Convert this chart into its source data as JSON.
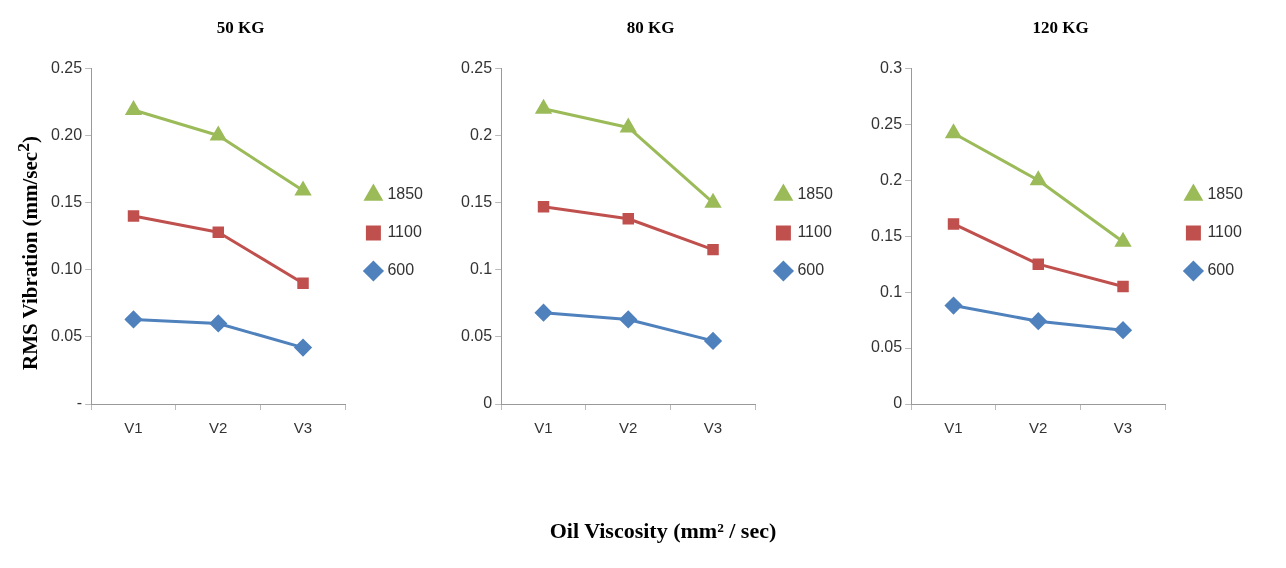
{
  "chart_data": [
    {
      "type": "line",
      "title": "50 KG",
      "ylabel": "RMS Vibration  (mm/sec$^{2}$)",
      "categories": [
        "V1",
        "V2",
        "V3"
      ],
      "ylim": [
        0,
        0.25
      ],
      "yticks": [
        {
          "value": 0,
          "label": "-"
        },
        0.05,
        {
          "value": 0.1,
          "label": "0.10"
        },
        0.15,
        {
          "value": 0.2,
          "label": "0.20"
        },
        0.25
      ],
      "grid": false,
      "legend": "right",
      "series": [
        {
          "name": "1850",
          "color": "#9bbb59",
          "marker": "triangle",
          "values": [
            0.219,
            0.2,
            0.159
          ]
        },
        {
          "name": "1100",
          "color": "#c0504d",
          "marker": "square",
          "values": [
            0.14,
            0.128,
            0.09
          ]
        },
        {
          "name": "600",
          "color": "#4f81bd",
          "marker": "diamond",
          "values": [
            0.063,
            0.06,
            0.042
          ]
        }
      ]
    },
    {
      "type": "line",
      "title": "80 KG",
      "xlabel": "Oil Viscosity (mm² / sec)",
      "categories": [
        "V1",
        "V2",
        "V3"
      ],
      "ylim": [
        0,
        0.25
      ],
      "yticks": [
        0,
        0.05,
        0.1,
        0.15,
        0.2,
        0.25
      ],
      "grid": false,
      "legend": "right",
      "series": [
        {
          "name": "1850",
          "color": "#9bbb59",
          "marker": "triangle",
          "values": [
            0.22,
            0.206,
            0.15
          ]
        },
        {
          "name": "1100",
          "color": "#c0504d",
          "marker": "square",
          "values": [
            0.147,
            0.138,
            0.115
          ]
        },
        {
          "name": "600",
          "color": "#4f81bd",
          "marker": "diamond",
          "values": [
            0.068,
            0.063,
            0.047
          ]
        }
      ]
    },
    {
      "type": "line",
      "title": "120 KG",
      "categories": [
        "V1",
        "V2",
        "V3"
      ],
      "ylim": [
        0,
        0.3
      ],
      "yticks": [
        0,
        0.05,
        0.1,
        0.15,
        0.2,
        0.25,
        0.3
      ],
      "grid": false,
      "legend": "right",
      "series": [
        {
          "name": "1850",
          "color": "#9bbb59",
          "marker": "triangle",
          "values": [
            0.242,
            0.2,
            0.145
          ]
        },
        {
          "name": "1100",
          "color": "#c0504d",
          "marker": "square",
          "values": [
            0.161,
            0.125,
            0.105
          ]
        },
        {
          "name": "600",
          "color": "#4f81bd",
          "marker": "diamond",
          "values": [
            0.088,
            0.074,
            0.066
          ]
        }
      ]
    }
  ]
}
